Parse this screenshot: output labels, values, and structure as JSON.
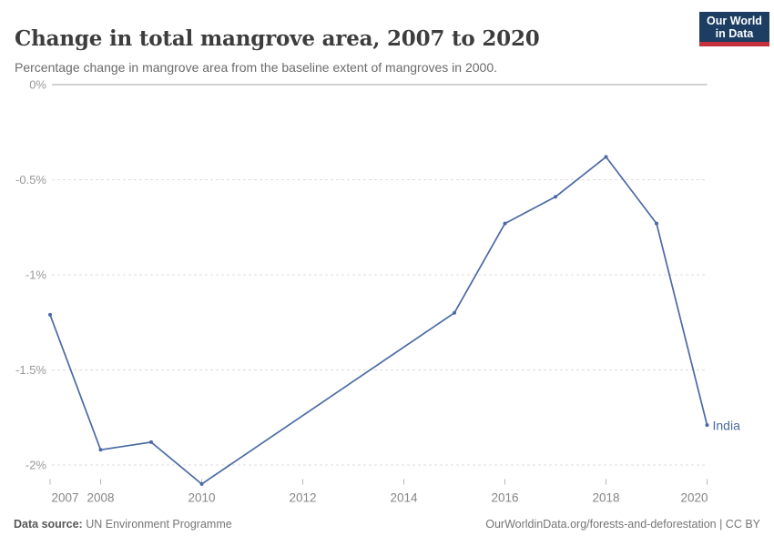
{
  "header": {
    "title": "Change in total mangrove area, 2007 to 2020",
    "subtitle": "Percentage change in mangrove area from the baseline extent of mangroves in 2000.",
    "logo": {
      "line1": "Our World",
      "line2": "in Data",
      "bg_color": "#1d3d63",
      "accent_color": "#c4313d"
    }
  },
  "chart_data": {
    "type": "line",
    "title": "Change in total mangrove area, 2007 to 2020",
    "xlabel": "",
    "ylabel": "",
    "xlim": [
      2007,
      2020
    ],
    "ylim": [
      -2.15,
      0
    ],
    "grid": "horizontal-dashed",
    "legend_position": "end-of-line-label",
    "x_ticks": [
      2007,
      2008,
      2010,
      2012,
      2014,
      2016,
      2018,
      2020
    ],
    "y_ticks": [
      {
        "label": "0%",
        "value": 0
      },
      {
        "label": "-0.5%",
        "value": -0.5
      },
      {
        "label": "-1%",
        "value": -1
      },
      {
        "label": "-1.5%",
        "value": -1.5
      },
      {
        "label": "-2%",
        "value": -2
      }
    ],
    "series": [
      {
        "name": "India",
        "color": "#4a69a5",
        "x": [
          2007,
          2008,
          2009,
          2010,
          2015,
          2016,
          2017,
          2018,
          2019,
          2020
        ],
        "values": [
          -1.21,
          -1.92,
          -1.88,
          -2.1,
          -1.2,
          -0.73,
          -0.59,
          -0.38,
          -0.73,
          -1.79
        ]
      }
    ]
  },
  "footer": {
    "source_label": "Data source:",
    "source_value": "UN Environment Programme",
    "credit": "OurWorldinData.org/forests-and-deforestation | CC BY"
  }
}
